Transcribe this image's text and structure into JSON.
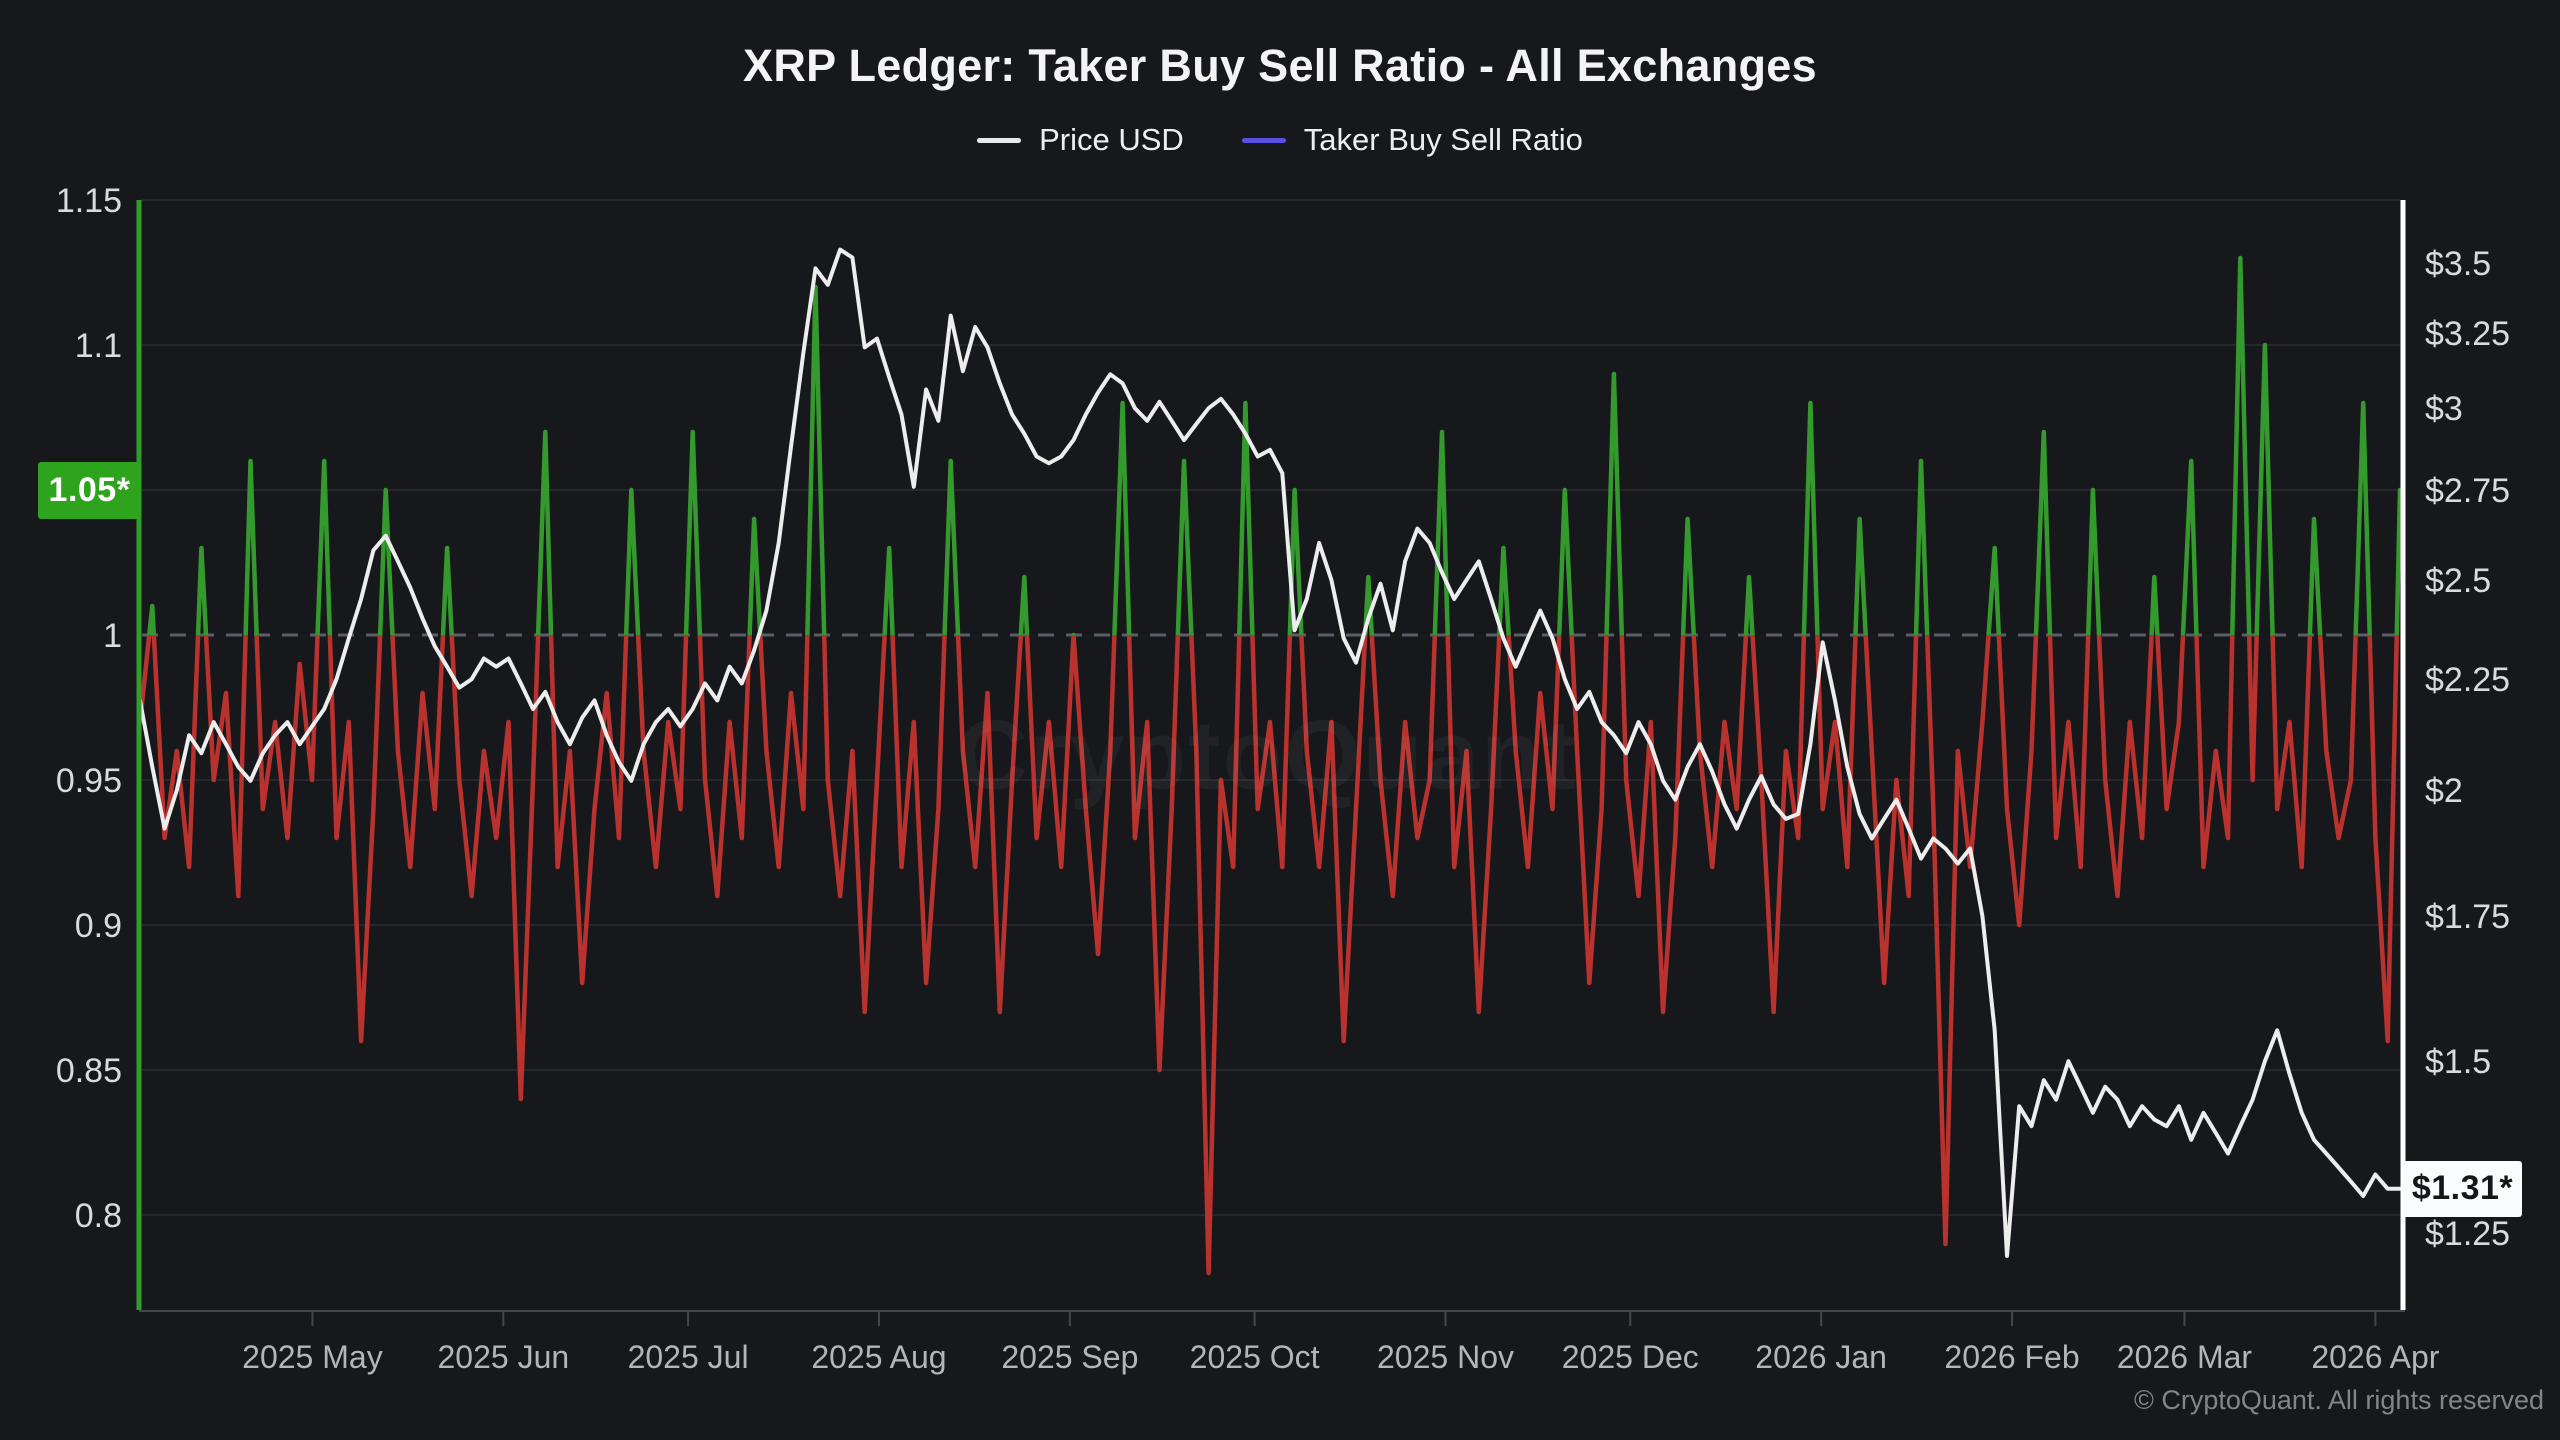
{
  "window": {
    "title": "XRP Ledger: Taker Buy Sell Ratio - All Exchanges"
  },
  "legend": {
    "items": [
      {
        "label": "Price USD",
        "color": "#e9eaec"
      },
      {
        "label": "Taker Buy Sell Ratio",
        "color": "#5a4fe0"
      }
    ]
  },
  "watermark_text": "CryptoQuant",
  "footer": {
    "copyright_text": "© CryptoQuant. All rights reserved"
  },
  "last_values": {
    "ratio_badge": {
      "label": "1.05*",
      "value": 1.05,
      "background": "#2ea31e"
    },
    "price_badge": {
      "label": "$1.31*",
      "value": 1.31,
      "background": "#fafbfc"
    }
  },
  "colors": {
    "background": "#17181c",
    "grid": "#26272c",
    "baseline_dashed": "#5a5e68",
    "ratio_up": "#349a2e",
    "ratio_down": "#b9322d",
    "price_line": "#ededee",
    "left_axis_line": "#2f9e2b",
    "right_axis_line": "#ffffff",
    "axis_text": "#d9dadd",
    "x_axis_text": "#b4b5bc",
    "bottom_axis_line": "#45464c"
  },
  "chart_data": {
    "type": "line",
    "title": "XRP Ledger: Taker Buy Sell Ratio - All Exchanges",
    "grid": "horizontal only",
    "legend_position": "top center",
    "annotations": [
      "dashed horizontal baseline at ratio = 1.0",
      "green badge 1.05* marks latest ratio on left axis",
      "white badge $1.31* marks latest price on right axis"
    ],
    "x_axis": {
      "start": "2025-04-03",
      "end": "2026-04-06",
      "total_days": 367,
      "sample_interval_days": 2,
      "tick_labels": [
        "2025 May",
        "2025 Jun",
        "2025 Jul",
        "2025 Aug",
        "2025 Sep",
        "2025 Oct",
        "2025 Nov",
        "2025 Dec",
        "2026 Jan",
        "2026 Feb",
        "2026 Mar",
        "2026 Apr"
      ],
      "tick_day_offsets": [
        28,
        59,
        89,
        120,
        151,
        181,
        212,
        242,
        273,
        304,
        332,
        363
      ]
    },
    "left_axis": {
      "name": "Taker Buy Sell Ratio",
      "scale": "linear",
      "min": 0.768,
      "max": 1.15,
      "baseline": 1,
      "tick_values": [
        1.15,
        1.1,
        1.05,
        1,
        0.95,
        0.9,
        0.85,
        0.8
      ],
      "tick_labels": [
        "1.15",
        "1.1",
        "1.05",
        "1",
        "0.95",
        "0.9",
        "0.85",
        "0.8"
      ]
    },
    "right_axis": {
      "name": "Price USD",
      "scale": "log",
      "min": 1.18,
      "max": 3.74,
      "tick_values": [
        3.5,
        3.25,
        3,
        2.75,
        2.5,
        2.25,
        2,
        1.75,
        1.5,
        1.25
      ],
      "tick_labels": [
        "$3.5",
        "$3.25",
        "$3",
        "$2.75",
        "$2.5",
        "$2.25",
        "$2",
        "$1.75",
        "$1.5",
        "$1.25"
      ]
    },
    "series": [
      {
        "name": "Taker Buy Sell Ratio",
        "render": "line colored green above 1.0 and red below 1.0",
        "last_value": 1.05,
        "values": [
          0.97,
          1.01,
          0.93,
          0.96,
          0.92,
          1.03,
          0.95,
          0.98,
          0.91,
          1.06,
          0.94,
          0.97,
          0.93,
          0.99,
          0.95,
          1.06,
          0.93,
          0.97,
          0.86,
          0.94,
          1.05,
          0.96,
          0.92,
          0.98,
          0.94,
          1.03,
          0.95,
          0.91,
          0.96,
          0.93,
          0.97,
          0.84,
          0.95,
          1.07,
          0.92,
          0.96,
          0.88,
          0.94,
          0.98,
          0.93,
          1.05,
          0.96,
          0.92,
          0.97,
          0.94,
          1.07,
          0.95,
          0.91,
          0.97,
          0.93,
          1.04,
          0.96,
          0.92,
          0.98,
          0.94,
          1.12,
          0.95,
          0.91,
          0.96,
          0.87,
          0.95,
          1.03,
          0.92,
          0.97,
          0.88,
          0.94,
          1.06,
          0.96,
          0.92,
          0.98,
          0.87,
          0.95,
          1.02,
          0.93,
          0.97,
          0.92,
          1.0,
          0.94,
          0.89,
          0.96,
          1.08,
          0.93,
          0.97,
          0.85,
          0.94,
          1.06,
          0.96,
          0.78,
          0.95,
          0.92,
          1.08,
          0.94,
          0.97,
          0.92,
          1.05,
          0.96,
          0.92,
          0.97,
          0.86,
          0.94,
          1.02,
          0.95,
          0.91,
          0.97,
          0.93,
          0.95,
          1.07,
          0.92,
          0.96,
          0.87,
          0.94,
          1.03,
          0.96,
          0.92,
          0.98,
          0.94,
          1.05,
          0.96,
          0.88,
          0.94,
          1.09,
          0.95,
          0.91,
          0.97,
          0.87,
          0.93,
          1.04,
          0.96,
          0.92,
          0.97,
          0.94,
          1.02,
          0.95,
          0.87,
          0.96,
          0.93,
          1.08,
          0.94,
          0.97,
          0.92,
          1.04,
          0.96,
          0.88,
          0.95,
          0.91,
          1.06,
          0.94,
          0.79,
          0.96,
          0.92,
          0.97,
          1.03,
          0.94,
          0.9,
          0.96,
          1.07,
          0.93,
          0.97,
          0.92,
          1.05,
          0.95,
          0.91,
          0.97,
          0.93,
          1.02,
          0.94,
          0.97,
          1.06,
          0.92,
          0.96,
          0.93,
          1.13,
          0.95,
          1.1,
          0.94,
          0.97,
          0.92,
          1.04,
          0.96,
          0.93,
          0.95,
          1.08,
          0.93,
          0.86,
          1.05
        ]
      },
      {
        "name": "Price USD",
        "render": "white line plotted on logarithmic right axis",
        "last_value": 1.31,
        "values": [
          2.2,
          2.05,
          1.92,
          2.0,
          2.12,
          2.08,
          2.15,
          2.1,
          2.05,
          2.02,
          2.08,
          2.12,
          2.15,
          2.1,
          2.14,
          2.18,
          2.25,
          2.35,
          2.45,
          2.58,
          2.62,
          2.55,
          2.48,
          2.4,
          2.33,
          2.28,
          2.23,
          2.25,
          2.3,
          2.28,
          2.3,
          2.24,
          2.18,
          2.22,
          2.15,
          2.1,
          2.16,
          2.2,
          2.12,
          2.06,
          2.02,
          2.1,
          2.15,
          2.18,
          2.14,
          2.18,
          2.24,
          2.2,
          2.28,
          2.24,
          2.32,
          2.42,
          2.6,
          2.88,
          3.18,
          3.48,
          3.42,
          3.55,
          3.52,
          3.2,
          3.23,
          3.1,
          2.98,
          2.76,
          3.06,
          2.96,
          3.31,
          3.12,
          3.27,
          3.2,
          3.08,
          2.98,
          2.92,
          2.85,
          2.83,
          2.85,
          2.9,
          2.98,
          3.05,
          3.11,
          3.08,
          3.0,
          2.96,
          3.02,
          2.96,
          2.9,
          2.95,
          3.0,
          3.03,
          2.98,
          2.92,
          2.85,
          2.87,
          2.8,
          2.37,
          2.45,
          2.6,
          2.5,
          2.35,
          2.29,
          2.4,
          2.49,
          2.37,
          2.55,
          2.64,
          2.6,
          2.52,
          2.45,
          2.5,
          2.55,
          2.45,
          2.35,
          2.28,
          2.35,
          2.42,
          2.35,
          2.25,
          2.18,
          2.22,
          2.15,
          2.12,
          2.08,
          2.15,
          2.1,
          2.02,
          1.98,
          2.05,
          2.1,
          2.04,
          1.97,
          1.92,
          1.98,
          2.03,
          1.97,
          1.94,
          1.95,
          2.1,
          2.34,
          2.2,
          2.05,
          1.95,
          1.9,
          1.94,
          1.98,
          1.92,
          1.86,
          1.9,
          1.88,
          1.85,
          1.88,
          1.75,
          1.55,
          1.22,
          1.43,
          1.4,
          1.47,
          1.44,
          1.5,
          1.46,
          1.42,
          1.46,
          1.44,
          1.4,
          1.43,
          1.41,
          1.4,
          1.43,
          1.38,
          1.42,
          1.39,
          1.36,
          1.4,
          1.44,
          1.5,
          1.55,
          1.48,
          1.42,
          1.38,
          1.36,
          1.34,
          1.32,
          1.3,
          1.33,
          1.31,
          1.31
        ]
      }
    ]
  }
}
